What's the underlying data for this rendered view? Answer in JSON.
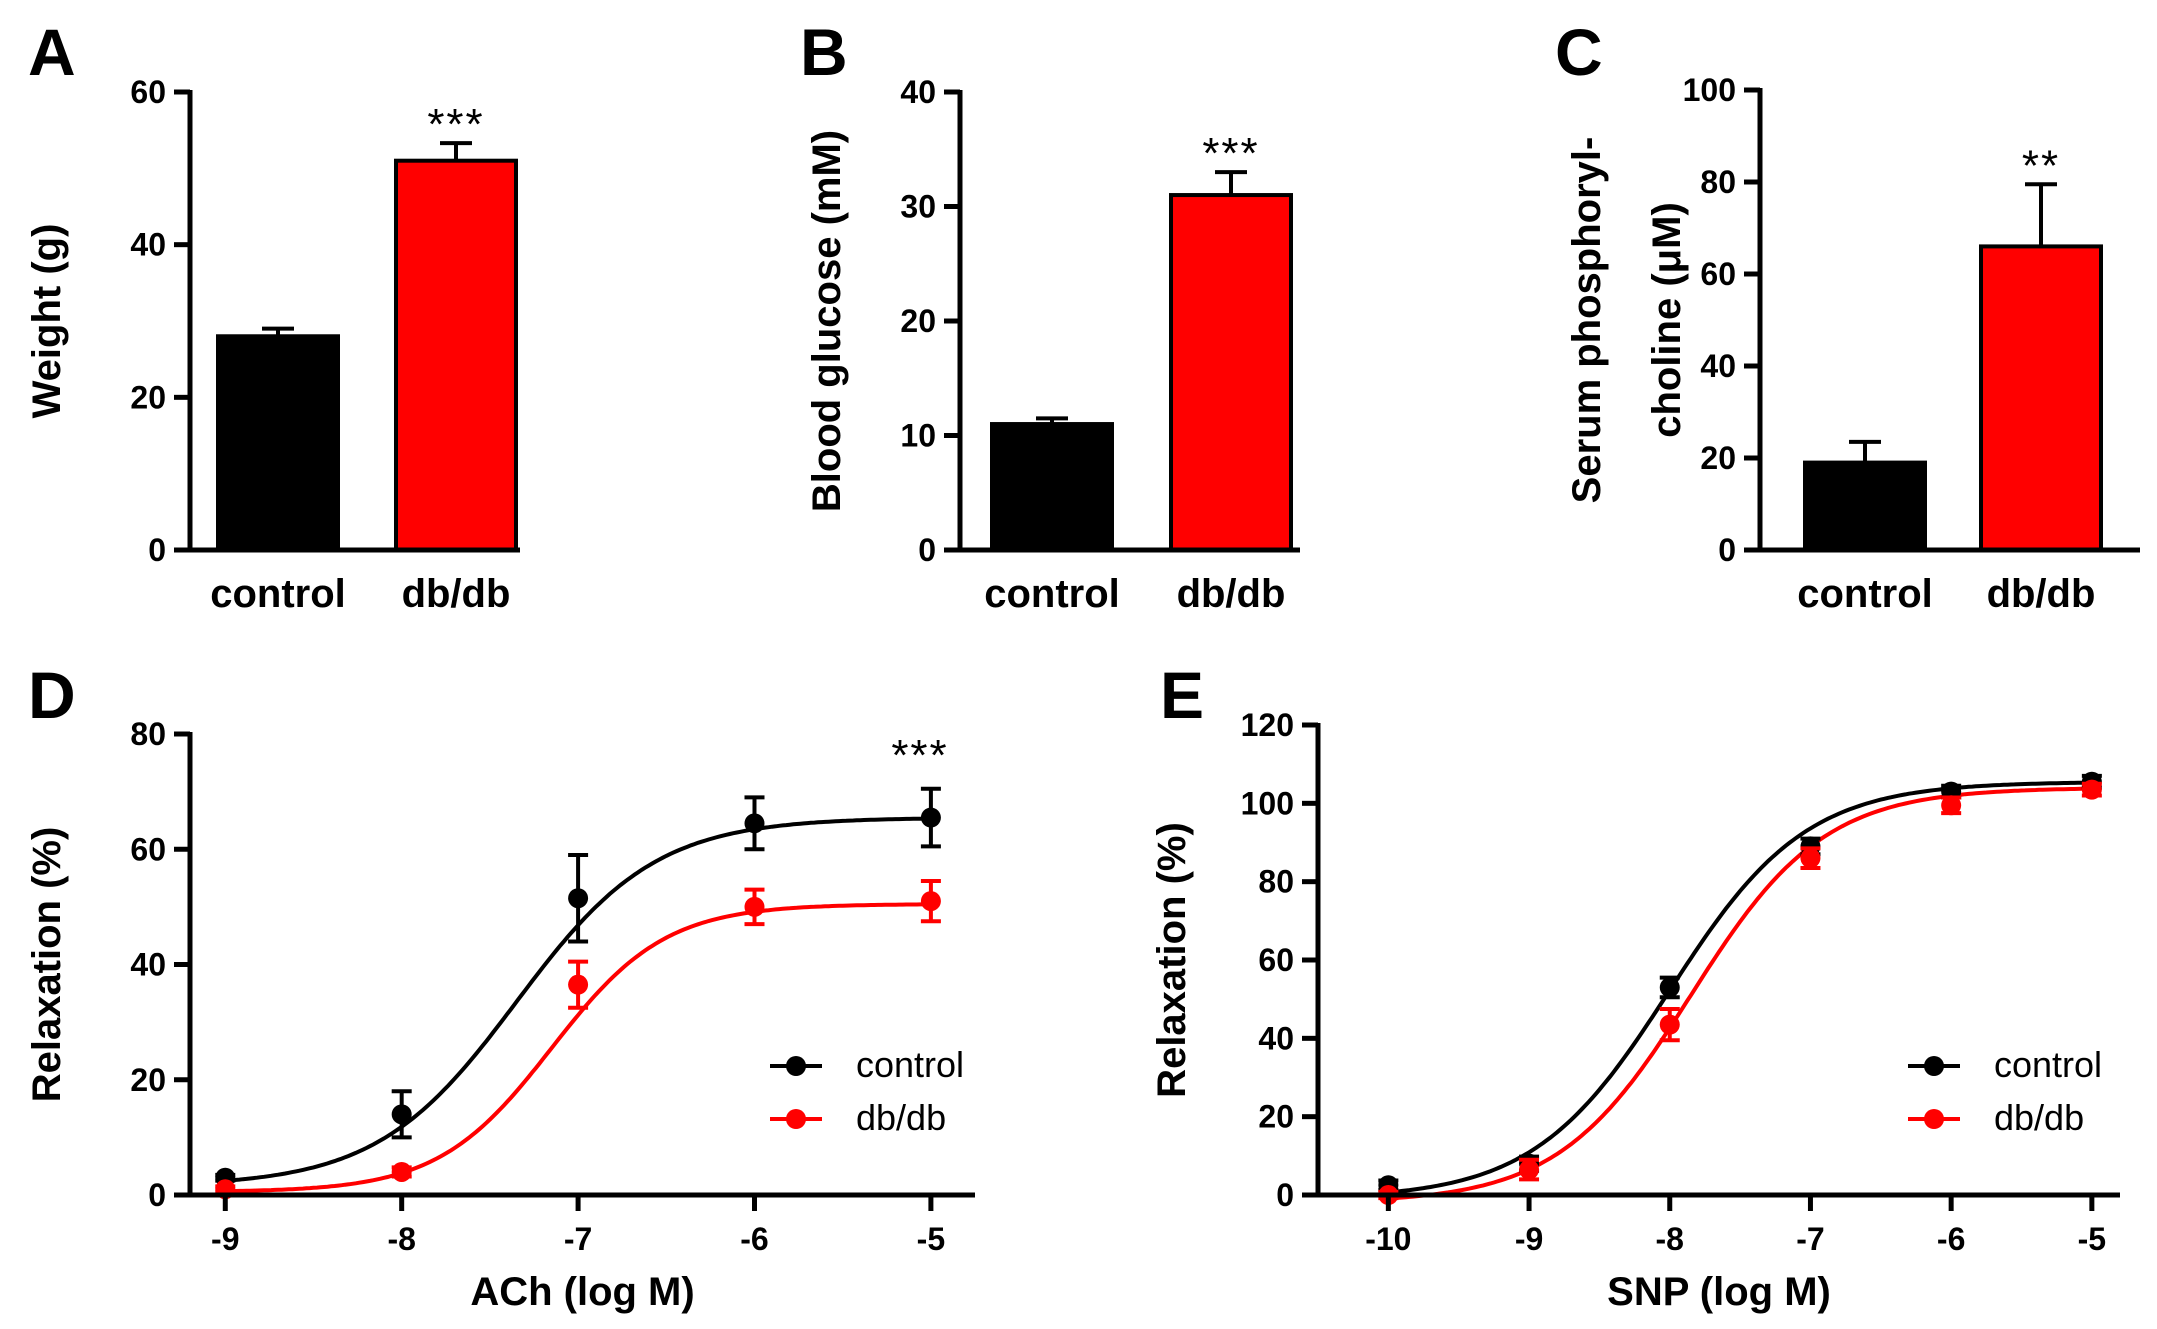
{
  "colors": {
    "control": "#000000",
    "dbdb": "#ff0000"
  },
  "chart_data": [
    {
      "id": "A",
      "type": "bar",
      "panel_label": "A",
      "categories": [
        "control",
        "db/db"
      ],
      "values": [
        28,
        51
      ],
      "errors": [
        1,
        2.3
      ],
      "colors": [
        "#000000",
        "#ff0000"
      ],
      "ylabel": "Weight (g)",
      "ylabel_lines": [
        "Weight (g)"
      ],
      "ylim": [
        0,
        60
      ],
      "yticks": [
        0,
        20,
        40,
        60
      ],
      "annotation": "***"
    },
    {
      "id": "B",
      "type": "bar",
      "panel_label": "B",
      "categories": [
        "control",
        "db/db"
      ],
      "values": [
        11,
        31
      ],
      "errors": [
        0.5,
        2
      ],
      "colors": [
        "#000000",
        "#ff0000"
      ],
      "ylabel": "Blood glucose (mM)",
      "ylabel_lines": [
        "Blood glucose (mM)"
      ],
      "ylim": [
        0,
        40
      ],
      "yticks": [
        0,
        10,
        20,
        30,
        40
      ],
      "annotation": "***"
    },
    {
      "id": "C",
      "type": "bar",
      "panel_label": "C",
      "categories": [
        "control",
        "db/db"
      ],
      "values": [
        19,
        66
      ],
      "errors": [
        4.5,
        13.5
      ],
      "colors": [
        "#000000",
        "#ff0000"
      ],
      "ylabel": "Serum phosphoryl- choline (μM)",
      "ylabel_lines": [
        "Serum phosphoryl-",
        "choline (μM)"
      ],
      "ylim": [
        0,
        100
      ],
      "yticks": [
        0,
        20,
        40,
        60,
        80,
        100
      ],
      "annotation": "**"
    },
    {
      "id": "D",
      "type": "line",
      "panel_label": "D",
      "xlabel": "ACh (log M)",
      "ylabel": "Relaxation (%)",
      "xlim": [
        -9.2,
        -4.75
      ],
      "ylim": [
        0,
        80
      ],
      "xticks": [
        -9,
        -8,
        -7,
        -6,
        -5
      ],
      "yticks": [
        0,
        20,
        40,
        60,
        80
      ],
      "annotation": "***",
      "legend_position": "lower-right",
      "series": [
        {
          "name": "control",
          "color": "#000000",
          "x": [
            -9,
            -8,
            -7,
            -6,
            -5
          ],
          "y": [
            3,
            14,
            51.5,
            64.5,
            65.5
          ],
          "err": [
            0.5,
            4,
            7.5,
            4.5,
            5
          ],
          "fit": {
            "bottom": 1.5,
            "top": 65.5,
            "logec50": -7.35,
            "hill": 1.1
          }
        },
        {
          "name": "db/db",
          "color": "#ff0000",
          "x": [
            -9,
            -8,
            -7,
            -6,
            -5
          ],
          "y": [
            1,
            4,
            36.5,
            50,
            51
          ],
          "err": [
            0.5,
            0.8,
            4,
            3,
            3.5
          ],
          "fit": {
            "bottom": 0.5,
            "top": 50.5,
            "logec50": -7.15,
            "hill": 1.35
          }
        }
      ]
    },
    {
      "id": "E",
      "type": "line",
      "panel_label": "E",
      "xlabel": "SNP (log M)",
      "ylabel": "Relaxation (%)",
      "xlim": [
        -10.5,
        -4.8
      ],
      "ylim": [
        0,
        120
      ],
      "xticks": [
        -10,
        -9,
        -8,
        -7,
        -6,
        -5
      ],
      "yticks": [
        0,
        20,
        40,
        60,
        80,
        100,
        120
      ],
      "annotation": "",
      "legend_position": "lower-right",
      "series": [
        {
          "name": "control",
          "color": "#000000",
          "x": [
            -10,
            -9,
            -8,
            -7,
            -6,
            -5
          ],
          "y": [
            2.5,
            8,
            53,
            89,
            103,
            105.5
          ],
          "err": [
            1.2,
            1.8,
            2.5,
            2,
            1.5,
            1.5
          ],
          "fit": {
            "bottom": -1,
            "top": 105.5,
            "logec50": -8.0,
            "hill": 0.9
          }
        },
        {
          "name": "db/db",
          "color": "#ff0000",
          "x": [
            -10,
            -9,
            -8,
            -7,
            -6,
            -5
          ],
          "y": [
            0,
            6.5,
            43.5,
            86,
            99.5,
            103.5
          ],
          "err": [
            0.8,
            2.5,
            4,
            2.5,
            2,
            1.5
          ],
          "fit": {
            "bottom": -2,
            "top": 104,
            "logec50": -7.85,
            "hill": 0.92
          }
        }
      ]
    }
  ]
}
